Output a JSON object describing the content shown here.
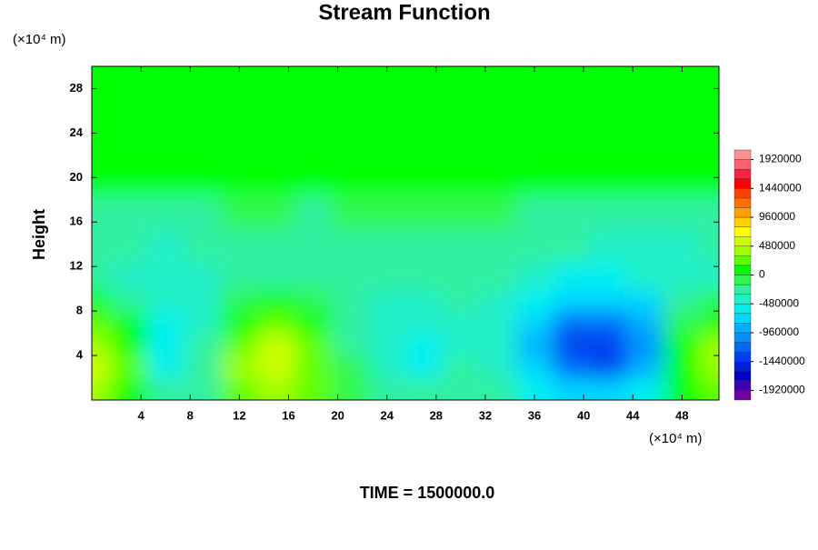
{
  "chart_data": {
    "type": "contour",
    "title": "Stream Function",
    "y_label": "Height",
    "y_unit": "(×10⁴ m)",
    "x_unit": "(×10⁴ m)",
    "footer": "TIME = 1500000.0",
    "xlim": [
      0,
      51
    ],
    "ylim": [
      0,
      30
    ],
    "xticks": [
      4,
      8,
      12,
      16,
      20,
      24,
      28,
      32,
      36,
      40,
      44,
      48
    ],
    "yticks": [
      4,
      8,
      12,
      16,
      20,
      24,
      28
    ],
    "x": [
      0,
      3,
      6,
      9,
      12,
      15,
      18,
      21,
      24,
      27,
      30,
      33,
      36,
      39,
      42,
      45,
      48,
      51
    ],
    "y": [
      1,
      3,
      5,
      7,
      9,
      11,
      14,
      17,
      20,
      25,
      30
    ],
    "z": [
      [
        350000,
        150000,
        -300000,
        -200000,
        200000,
        400000,
        200000,
        -100000,
        -200000,
        -300000,
        -200000,
        -300000,
        -500000,
        -700000,
        -700000,
        -500000,
        0,
        300000
      ],
      [
        550000,
        200000,
        -500000,
        -300000,
        350000,
        550000,
        300000,
        -150000,
        -400000,
        -550000,
        -300000,
        -400000,
        -800000,
        -1250000,
        -1300000,
        -900000,
        50000,
        450000
      ],
      [
        450000,
        150000,
        -600000,
        -300000,
        300000,
        500000,
        250000,
        -200000,
        -450000,
        -600000,
        -350000,
        -450000,
        -900000,
        -1400000,
        -1400000,
        -1000000,
        0,
        350000
      ],
      [
        250000,
        0,
        -550000,
        -350000,
        150000,
        300000,
        100000,
        -250000,
        -400000,
        -450000,
        -350000,
        -450000,
        -800000,
        -1150000,
        -1150000,
        -850000,
        -150000,
        150000
      ],
      [
        50000,
        -250000,
        -450000,
        -350000,
        -100000,
        0,
        -150000,
        -300000,
        -350000,
        -350000,
        -300000,
        -400000,
        -600000,
        -800000,
        -800000,
        -650000,
        -300000,
        -100000
      ],
      [
        -250000,
        -400000,
        -400000,
        -350000,
        -300000,
        -250000,
        -300000,
        -300000,
        -300000,
        -300000,
        -250000,
        -300000,
        -400000,
        -500000,
        -500000,
        -450000,
        -400000,
        -350000
      ],
      [
        -300000,
        -300000,
        -350000,
        -300000,
        -250000,
        -250000,
        -300000,
        -250000,
        -200000,
        -250000,
        -200000,
        -250000,
        -300000,
        -300000,
        -350000,
        -350000,
        -350000,
        -300000
      ],
      [
        -200000,
        -200000,
        -250000,
        -200000,
        -150000,
        -150000,
        -200000,
        -150000,
        -150000,
        -150000,
        -150000,
        -150000,
        -200000,
        -200000,
        -250000,
        -250000,
        -200000,
        -200000
      ],
      [
        50000,
        50000,
        50000,
        50000,
        50000,
        50000,
        50000,
        50000,
        50000,
        50000,
        50000,
        50000,
        50000,
        50000,
        50000,
        50000,
        50000,
        50000
      ],
      [
        50000,
        50000,
        50000,
        50000,
        50000,
        50000,
        50000,
        50000,
        50000,
        50000,
        50000,
        50000,
        50000,
        50000,
        50000,
        50000,
        50000,
        50000
      ],
      [
        50000,
        50000,
        50000,
        50000,
        50000,
        50000,
        50000,
        50000,
        50000,
        50000,
        50000,
        50000,
        50000,
        50000,
        50000,
        50000,
        50000,
        50000
      ]
    ],
    "colorbar": {
      "ticks": [
        1920000,
        1440000,
        960000,
        480000,
        0,
        -480000,
        -960000,
        -1440000,
        -1920000
      ],
      "colors": [
        "#7000a0",
        "#4000b0",
        "#0000c8",
        "#0020e0",
        "#0040f0",
        "#0068f8",
        "#0090ff",
        "#00b0ff",
        "#00d8ff",
        "#00f0f0",
        "#20f0c8",
        "#30f0a0",
        "#30f850",
        "#00ff00",
        "#60ff00",
        "#a0ff00",
        "#d0ff00",
        "#ffff00",
        "#ffd000",
        "#ffa000",
        "#ff7000",
        "#ff4000",
        "#ff0000",
        "#ff2040",
        "#ff6070",
        "#ff9090"
      ]
    }
  }
}
